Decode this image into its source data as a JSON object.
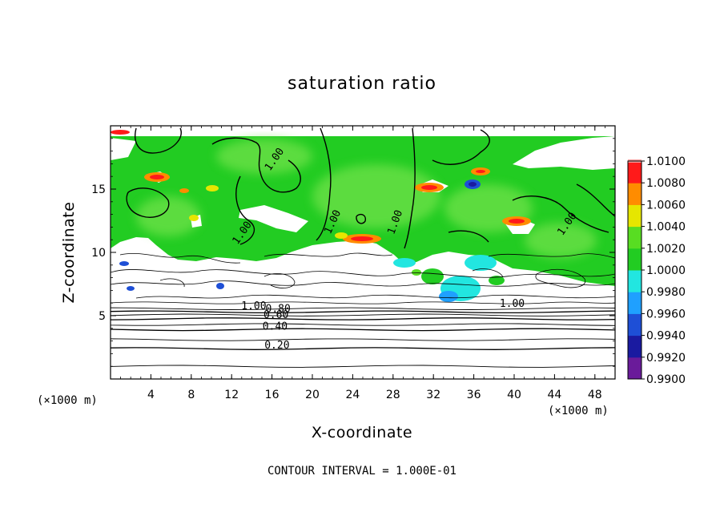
{
  "chart_data": {
    "type": "heatmap",
    "title": "saturation ratio",
    "xlabel": "X-coordinate",
    "ylabel": "Z-coordinate",
    "x_unit_label": "(×1000 m)",
    "z_unit_label": "(×1000 m)",
    "xlim": [
      0,
      50
    ],
    "ylim": [
      0,
      20
    ],
    "x_ticks": [
      4,
      8,
      12,
      16,
      20,
      24,
      28,
      32,
      36,
      40,
      44,
      48
    ],
    "y_ticks": [
      5,
      10,
      15
    ],
    "footer": "CONTOUR INTERVAL = 1.000E-01",
    "colorbar": {
      "levels": [
        "0.9900",
        "0.9920",
        "0.9940",
        "0.9960",
        "0.9980",
        "1.0000",
        "1.0020",
        "1.0040",
        "1.0060",
        "1.0080",
        "1.0100"
      ],
      "colors": [
        "#6a1b9a",
        "#1a1aa0",
        "#1e4fd6",
        "#1fa0ff",
        "#22e6e0",
        "#22cc22",
        "#58dd22",
        "#e6e600",
        "#ff8c00",
        "#ff1a1a",
        "#f4a0a0"
      ]
    },
    "contour_labels": [
      {
        "text": "1.00",
        "x": 16.5,
        "y": 17.2,
        "angle": -55
      },
      {
        "text": "1.00",
        "x": 22.3,
        "y": 12.3,
        "angle": -65
      },
      {
        "text": "1.00",
        "x": 28.5,
        "y": 12.3,
        "angle": -70
      },
      {
        "text": "1.00",
        "x": 45.5,
        "y": 12.1,
        "angle": -55
      },
      {
        "text": "1.00",
        "x": 13.3,
        "y": 11.4,
        "angle": -55
      },
      {
        "text": "1.00",
        "x": 39.8,
        "y": 5.7,
        "angle": 0
      },
      {
        "text": "1.00",
        "x": 14.2,
        "y": 5.5,
        "angle": 0
      },
      {
        "text": "0.80",
        "x": 16.6,
        "y": 5.3,
        "angle": 0
      },
      {
        "text": "0.60",
        "x": 16.4,
        "y": 4.8,
        "angle": 0
      },
      {
        "text": "0.40",
        "x": 16.3,
        "y": 3.9,
        "angle": 0
      },
      {
        "text": "0.20",
        "x": 16.5,
        "y": 2.4,
        "angle": 0
      }
    ],
    "horizontal_contours": [
      {
        "level": 0.1,
        "z": 1.0
      },
      {
        "level": 0.2,
        "z": 2.4
      },
      {
        "level": 0.3,
        "z": 3.1
      },
      {
        "level": 0.4,
        "z": 3.9
      },
      {
        "level": 0.5,
        "z": 4.3
      },
      {
        "level": 0.6,
        "z": 4.75
      },
      {
        "level": 0.7,
        "z": 5.05
      },
      {
        "level": 0.8,
        "z": 5.3
      },
      {
        "level": 0.9,
        "z": 5.55
      }
    ]
  }
}
